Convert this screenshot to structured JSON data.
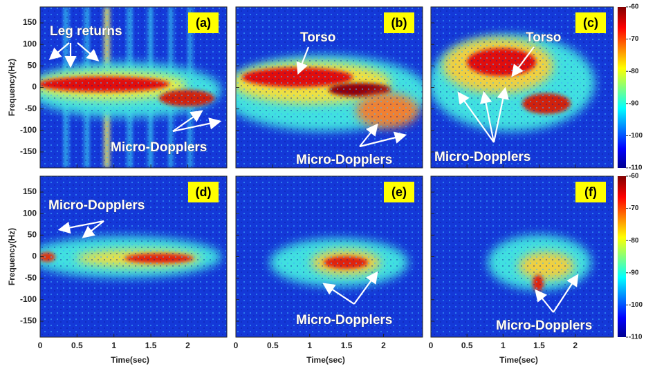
{
  "y_label": "Frequency(Hz)",
  "x_label": "Time(sec)",
  "xlim": [
    0,
    2.53
  ],
  "xticks": [
    0,
    0.5,
    1,
    1.5,
    2
  ],
  "ylim": [
    -187,
    187
  ],
  "yticks": [
    150,
    100,
    50,
    0,
    -50,
    -100,
    -150
  ],
  "colorbar": {
    "lim": [
      -110,
      -60
    ],
    "ticks": [
      -60,
      -70,
      -80,
      -90,
      -100,
      -110
    ]
  },
  "panels": [
    {
      "label": "(a)",
      "annotations": [
        "Leg returns",
        "Micro-Dopplers"
      ]
    },
    {
      "label": "(b)",
      "annotations": [
        "Torso",
        "Micro-Dopplers"
      ]
    },
    {
      "label": "(c)",
      "annotations": [
        "Torso",
        "Micro-Dopplers"
      ]
    },
    {
      "label": "(d)",
      "annotations": [
        "Micro-Dopplers"
      ]
    },
    {
      "label": "(e)",
      "annotations": [
        "Micro-Dopplers"
      ]
    },
    {
      "label": "(f)",
      "annotations": [
        "Micro-Dopplers"
      ]
    }
  ]
}
